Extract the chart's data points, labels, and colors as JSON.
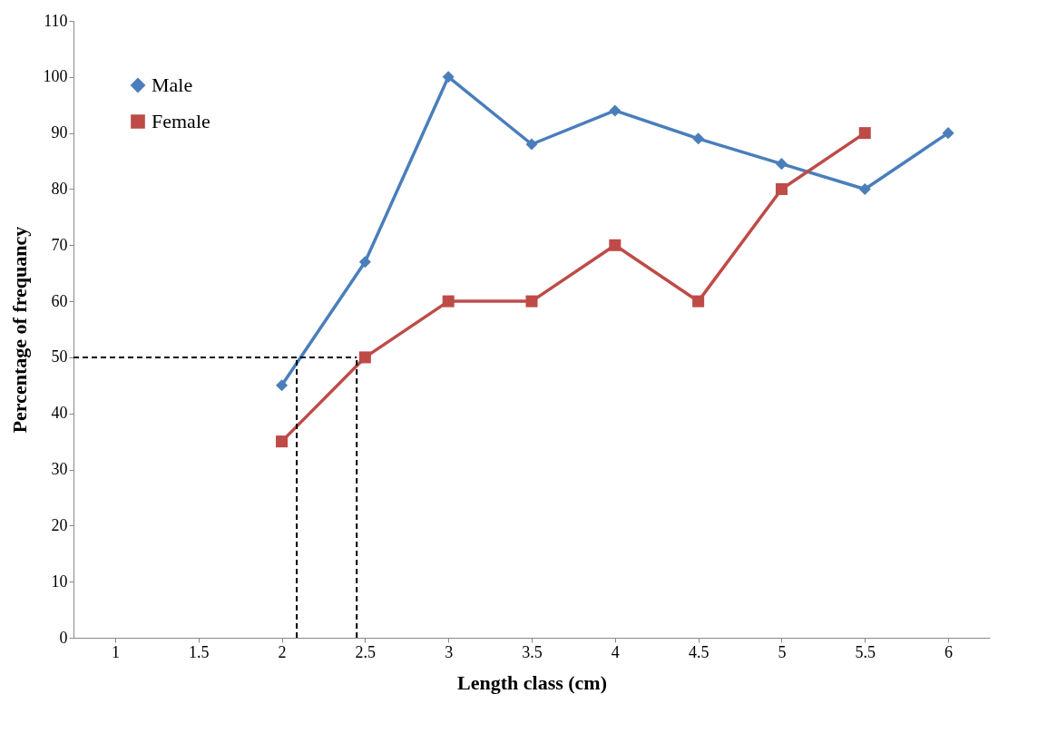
{
  "chart_data": {
    "type": "line",
    "xlabel": "Length class (cm)",
    "ylabel": "Percentage of frequancy",
    "xlim": [
      0.75,
      6.25
    ],
    "xticks": [
      1,
      1.5,
      2,
      2.5,
      3,
      3.5,
      4,
      4.5,
      5,
      5.5,
      6
    ],
    "ylim": [
      0,
      110
    ],
    "yticks": [
      0,
      10,
      20,
      30,
      40,
      50,
      60,
      70,
      80,
      90,
      100,
      110
    ],
    "grid": false,
    "legend": "top left",
    "line_style": "solid",
    "series": [
      {
        "name": "Male",
        "color": "#4a7ebb",
        "marker": "diamond",
        "x": [
          2,
          2.5,
          3,
          3.5,
          4,
          4.5,
          5,
          5.5,
          6
        ],
        "values": [
          45,
          67,
          100,
          88,
          94,
          89,
          84.5,
          80,
          90
        ]
      },
      {
        "name": "Female",
        "color": "#be4b48",
        "marker": "square",
        "x": [
          2,
          2.5,
          3,
          3.5,
          4,
          4.5,
          5,
          5.5
        ],
        "values": [
          35,
          50,
          60,
          60,
          70,
          60,
          80,
          90
        ]
      }
    ],
    "ref_lines": [
      {
        "axis": "y",
        "value": 50,
        "color": "#000000",
        "line_style": "dashed"
      },
      {
        "axis": "x",
        "value": 2.09,
        "color": "#000000",
        "line_style": "dashed"
      },
      {
        "axis": "x",
        "value": 2.45,
        "color": "#000000",
        "line_style": "dashed"
      }
    ]
  }
}
